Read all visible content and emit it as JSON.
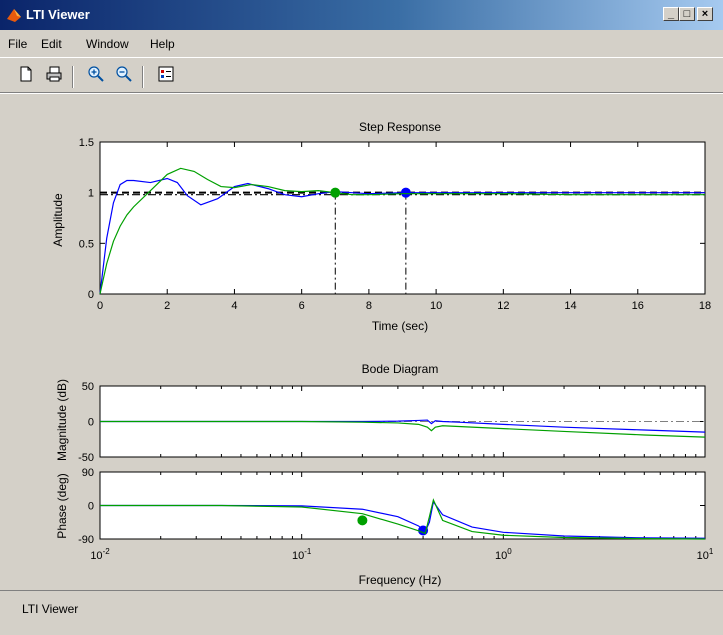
{
  "window": {
    "title": "LTI Viewer",
    "controls": {
      "minimize": "_",
      "maximize": "□",
      "close": "×"
    }
  },
  "menu": [
    "File",
    "Edit",
    "Window",
    "Help"
  ],
  "toolbar": {
    "icons": [
      "new-icon",
      "print-icon",
      "zoom-in-icon",
      "zoom-out-icon",
      "legend-icon"
    ]
  },
  "colors": {
    "series_blue": "#0000ff",
    "series_green": "#00a000",
    "reference": "#000000",
    "axes_bg": "#ffffff",
    "window_bg": "#d4d0c8"
  },
  "status": {
    "text": "LTI Viewer"
  },
  "chart_data": [
    {
      "type": "line",
      "title": "Step Response",
      "xlabel": "Time (sec)",
      "ylabel": "Amplitude",
      "xlim": [
        0,
        18
      ],
      "ylim": [
        0,
        1.5
      ],
      "xticks": [
        "0",
        "2",
        "4",
        "6",
        "8",
        "10",
        "12",
        "14",
        "16",
        "18"
      ],
      "yticks": [
        "0",
        "0.5",
        "1",
        "1.5"
      ],
      "grid": false,
      "series": [
        {
          "color": "#0000ff",
          "x": [
            0,
            0.2,
            0.4,
            0.6,
            0.8,
            1.0,
            1.5,
            2.0,
            2.3,
            2.6,
            3.0,
            3.5,
            4.0,
            4.4,
            5.0,
            5.5,
            6.0,
            6.5,
            7.0,
            7.5,
            8.0,
            9.0,
            10,
            12,
            14,
            16,
            18
          ],
          "y": [
            0,
            0.55,
            0.9,
            1.08,
            1.12,
            1.12,
            1.1,
            1.14,
            1.1,
            0.97,
            0.88,
            0.94,
            1.06,
            1.09,
            1.04,
            0.98,
            0.96,
            0.99,
            1.01,
            1.0,
            0.99,
            1.0,
            1.0,
            1.0,
            1.0,
            1.0,
            1.0
          ],
          "settling_marker": {
            "x": 9.1,
            "y": 1.0
          }
        },
        {
          "color": "#00a000",
          "x": [
            0,
            0.2,
            0.4,
            0.6,
            0.8,
            1.0,
            1.5,
            2.0,
            2.4,
            2.8,
            3.2,
            3.6,
            4.0,
            4.5,
            5.0,
            5.5,
            6.0,
            6.5,
            7.0,
            7.5,
            8.0,
            9.0,
            10,
            12,
            14,
            16,
            18
          ],
          "y": [
            0,
            0.3,
            0.52,
            0.67,
            0.78,
            0.86,
            1.02,
            1.18,
            1.24,
            1.21,
            1.13,
            1.06,
            1.05,
            1.08,
            1.06,
            1.02,
            1.01,
            1.02,
            1.0,
            0.98,
            0.98,
            0.99,
            0.99,
            0.99,
            0.98,
            0.98,
            0.98
          ],
          "settling_marker": {
            "x": 7.0,
            "y": 1.0
          }
        }
      ],
      "reference_lines": [
        {
          "y": 1.0,
          "style": "dashed"
        },
        {
          "y": 0.98,
          "style": "dashdot"
        }
      ]
    },
    {
      "type": "line",
      "title": "Bode Diagram",
      "xlabel": "Frequency  (Hz)",
      "xscale": "log",
      "xlim": [
        0.01,
        10
      ],
      "xticks": [
        "10-2",
        "10-1",
        "100",
        "101"
      ],
      "panels": [
        {
          "ylabel": "Magnitude (dB)",
          "ylim": [
            -50,
            50
          ],
          "yticks": [
            "50",
            "0",
            "-50"
          ],
          "reference_line": {
            "y": 0,
            "style": "dashdot"
          },
          "series": [
            {
              "color": "#0000ff",
              "x": [
                0.01,
                0.05,
                0.1,
                0.2,
                0.3,
                0.38,
                0.42,
                0.44,
                0.46,
                0.5,
                0.6,
                1,
                2,
                5,
                10
              ],
              "y": [
                0,
                0,
                0,
                0,
                0.5,
                1.5,
                2,
                -3,
                1,
                0,
                -1,
                -4,
                -8,
                -12,
                -15
              ]
            },
            {
              "color": "#00a000",
              "x": [
                0.01,
                0.05,
                0.1,
                0.2,
                0.3,
                0.38,
                0.42,
                0.44,
                0.46,
                0.5,
                0.6,
                1,
                2,
                5,
                10
              ],
              "y": [
                0,
                0,
                0,
                -1,
                -2,
                -4,
                -8,
                -13,
                -8,
                -6,
                -7,
                -10,
                -14,
                -19,
                -22
              ]
            }
          ]
        },
        {
          "ylabel": "Phase (deg)",
          "ylim": [
            -90,
            90
          ],
          "yticks": [
            "90",
            "0",
            "-90"
          ],
          "series": [
            {
              "color": "#0000ff",
              "x": [
                0.01,
                0.04,
                0.1,
                0.2,
                0.3,
                0.38,
                0.41,
                0.43,
                0.45,
                0.5,
                0.7,
                1,
                2,
                5,
                10
              ],
              "y": [
                0,
                0,
                -1,
                -10,
                -30,
                -55,
                -70,
                -45,
                10,
                -25,
                -58,
                -72,
                -82,
                -87,
                -88
              ],
              "marker": {
                "x": 0.4,
                "y": -67
              }
            },
            {
              "color": "#00a000",
              "x": [
                0.01,
                0.04,
                0.1,
                0.2,
                0.3,
                0.38,
                0.41,
                0.43,
                0.45,
                0.5,
                0.7,
                1,
                2,
                5,
                10
              ],
              "y": [
                0,
                0,
                -4,
                -22,
                -50,
                -68,
                -75,
                -30,
                15,
                -40,
                -70,
                -80,
                -86,
                -89,
                -90
              ],
              "marker": {
                "x": 0.2,
                "y": -40
              }
            }
          ]
        }
      ]
    }
  ]
}
